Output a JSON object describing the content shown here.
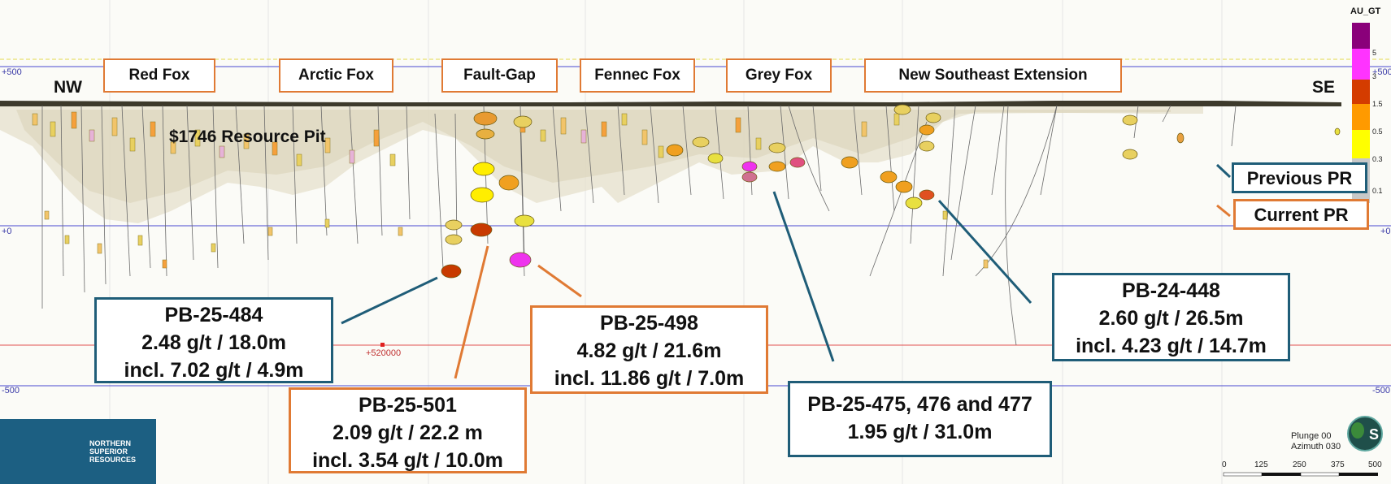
{
  "zones": [
    {
      "name": "Red Fox"
    },
    {
      "name": "Arctic Fox"
    },
    {
      "name": "Fault-Gap"
    },
    {
      "name": "Fennec Fox"
    },
    {
      "name": "Grey Fox"
    },
    {
      "name": "New Southeast Extension"
    }
  ],
  "directions": {
    "left": "NW",
    "right": "SE"
  },
  "pit_label": "$1746 Resource Pit",
  "elevations": {
    "top": "+500",
    "mid": "+0",
    "bottom": "-500",
    "easting": "+520000"
  },
  "colorbar": {
    "title": "AU_GT",
    "ticks": [
      "5",
      "3",
      "1.5",
      "0.5",
      "0.3",
      "0.1"
    ],
    "colors": [
      "#8a007a",
      "#ff33ff",
      "#d43c00",
      "#ff9a00",
      "#ffff00",
      "#c8c8c8"
    ]
  },
  "legend": {
    "previous": "Previous PR",
    "current": "Current PR",
    "previous_color": "#1f5d78",
    "current_color": "#e07a34"
  },
  "intercepts": [
    {
      "hole": "PB-25-484",
      "line1": "2.48 g/t  / 18.0m",
      "line2": "incl. 7.02 g/t / 4.9m"
    },
    {
      "hole": "PB-25-501",
      "line1": "2.09 g/t / 22.2 m",
      "line2": "incl. 3.54 g/t / 10.0m"
    },
    {
      "hole": "PB-25-498",
      "line1": "4.82 g/t / 21.6m",
      "line2": "incl. 11.86 g/t / 7.0m"
    },
    {
      "hole": "PB-25-475, 476 and 477",
      "line1": "1.95 g/t / 31.0m"
    },
    {
      "hole": "PB-24-448",
      "line1": "2.60 g/t / 26.5m",
      "line2": "incl. 4.23 g/t / 14.7m"
    }
  ],
  "orientation": {
    "plunge": "Plunge 00",
    "azimuth": "Azimuth 030"
  },
  "scale": [
    "0",
    "125",
    "250",
    "375",
    "500"
  ],
  "logo": {
    "line1": "NORTHERN",
    "line2": "SUPERIOR",
    "line3": "RESOURCES"
  }
}
